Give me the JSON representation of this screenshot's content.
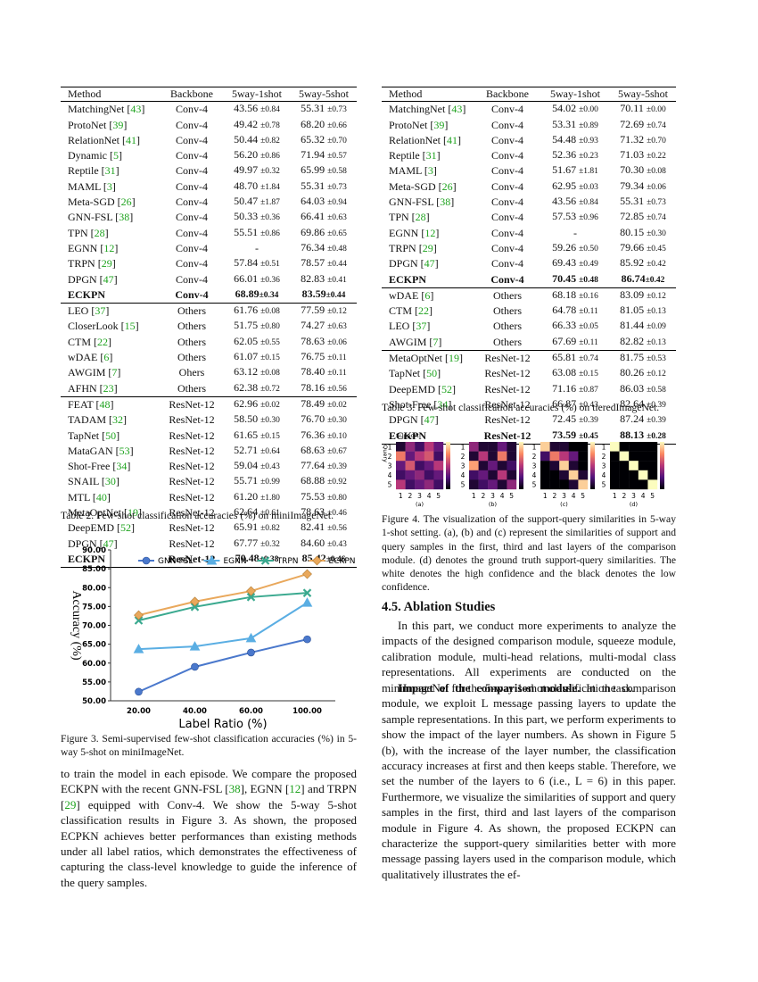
{
  "table2": {
    "header": [
      "Method",
      "Backbone",
      "5way-1shot",
      "5way-5shot"
    ],
    "groups": [
      {
        "bold_last": true,
        "rows": [
          [
            "MatchingNet [43]",
            "Conv-4",
            "43.56 ±0.84",
            "55.31 ±0.73"
          ],
          [
            "ProtoNet [39]",
            "Conv-4",
            "49.42 ±0.78",
            "68.20 ±0.66"
          ],
          [
            "RelationNet [41]",
            "Conv-4",
            "50.44 ±0.82",
            "65.32 ±0.70"
          ],
          [
            "Dynamic [5]",
            "Conv-4",
            "56.20 ±0.86",
            "71.94 ±0.57"
          ],
          [
            "Reptile [31]",
            "Conv-4",
            "49.97 ±0.32",
            "65.99 ±0.58"
          ],
          [
            "MAML [3]",
            "Conv-4",
            "48.70 ±1.84",
            "55.31 ±0.73"
          ],
          [
            "Meta-SGD [26]",
            "Conv-4",
            "50.47 ±1.87",
            "64.03 ±0.94"
          ],
          [
            "GNN-FSL [38]",
            "Conv-4",
            "50.33 ±0.36",
            "66.41 ±0.63"
          ],
          [
            "TPN [28]",
            "Conv-4",
            "55.51 ±0.86",
            "69.86 ±0.65"
          ],
          [
            "EGNN [12]",
            "Conv-4",
            "-",
            "76.34 ±0.48"
          ],
          [
            "TRPN [29]",
            "Conv-4",
            "57.84 ±0.51",
            "78.57 ±0.44"
          ],
          [
            "DPGN [47]",
            "Conv-4",
            "66.01 ±0.36",
            "82.83 ±0.41"
          ],
          [
            "ECKPN",
            "Conv-4",
            "68.89±0.34",
            "83.59±0.44"
          ]
        ]
      },
      {
        "bold_last": false,
        "rows": [
          [
            "LEO [37]",
            "Others",
            "61.76 ±0.08",
            "77.59 ±0.12"
          ],
          [
            "CloserLook [15]",
            "Others",
            "51.75 ±0.80",
            "74.27 ±0.63"
          ],
          [
            "CTM [22]",
            "Others",
            "62.05 ±0.55",
            "78.63 ±0.06"
          ],
          [
            "wDAE [6]",
            "Others",
            "61.07 ±0.15",
            "76.75 ±0.11"
          ],
          [
            "AWGIM [7]",
            "Ohers",
            "63.12 ±0.08",
            "78.40 ±0.11"
          ],
          [
            "AFHN [23]",
            "Others",
            "62.38 ±0.72",
            "78.16 ±0.56"
          ]
        ]
      },
      {
        "bold_last": true,
        "rows": [
          [
            "FEAT [48]",
            "ResNet-12",
            "62.96 ±0.02",
            "78.49 ±0.02"
          ],
          [
            "TADAM [32]",
            "ResNet-12",
            "58.50 ±0.30",
            "76.70 ±0.30"
          ],
          [
            "TapNet [50]",
            "ResNet-12",
            "61.65 ±0.15",
            "76.36 ±0.10"
          ],
          [
            "MataGAN [53]",
            "ResNet-12",
            "52.71 ±0.64",
            "68.63 ±0.67"
          ],
          [
            "Shot-Free [34]",
            "ResNet-12",
            "59.04 ±0.43",
            "77.64 ±0.39"
          ],
          [
            "SNAIL [30]",
            "ResNet-12",
            "55.71 ±0.99",
            "68.88 ±0.92"
          ],
          [
            "MTL [40]",
            "ResNet-12",
            "61.20 ±1.80",
            "75.53 ±0.80"
          ],
          [
            "MetaOptNet [19]",
            "ResNet-12",
            "62.64 ±0.61",
            "78.63 ±0.46"
          ],
          [
            "DeepEMD [52]",
            "ResNet-12",
            "65.91 ±0.82",
            "82.41 ±0.56"
          ],
          [
            "DPGN [47]",
            "ResNet-12",
            "67.77 ±0.32",
            "84.60 ±0.43"
          ],
          [
            "ECKPN",
            "ResNet-12",
            "70.48±0.38",
            "85.42±0.46"
          ]
        ]
      }
    ],
    "caption": "Table 2. Few-shot classification accuracies (%) on miniImageNet."
  },
  "table3": {
    "header": [
      "Method",
      "Backbone",
      "5way-1shot",
      "5way-5shot"
    ],
    "groups": [
      {
        "bold_last": true,
        "rows": [
          [
            "MatchingNet [43]",
            "Conv-4",
            "54.02 ±0.00",
            "70.11 ±0.00"
          ],
          [
            "ProtoNet [39]",
            "Conv-4",
            "53.31 ±0.89",
            "72.69 ±0.74"
          ],
          [
            "RelationNet [41]",
            "Conv-4",
            "54.48 ±0.93",
            "71.32 ±0.70"
          ],
          [
            "Reptile [31]",
            "Conv-4",
            "52.36 ±0.23",
            "71.03 ±0.22"
          ],
          [
            "MAML [3]",
            "Conv-4",
            "51.67 ±1.81",
            "70.30 ±0.08"
          ],
          [
            "Meta-SGD [26]",
            "Conv-4",
            "62.95 ±0.03",
            "79.34 ±0.06"
          ],
          [
            "GNN-FSL [38]",
            "Conv-4",
            "43.56 ±0.84",
            "55.31 ±0.73"
          ],
          [
            "TPN [28]",
            "Conv-4",
            "57.53 ±0.96",
            "72.85 ±0.74"
          ],
          [
            "EGNN [12]",
            "Conv-4",
            "-",
            "80.15 ±0.30"
          ],
          [
            "TRPN [29]",
            "Conv-4",
            "59.26 ±0.50",
            "79.66 ±0.45"
          ],
          [
            "DPGN [47]",
            "Conv-4",
            "69.43 ±0.49",
            "85.92 ±0.42"
          ],
          [
            "ECKPN",
            "Conv-4",
            "70.45 ±0.48",
            "86.74±0.42"
          ]
        ]
      },
      {
        "bold_last": false,
        "rows": [
          [
            "wDAE [6]",
            "Others",
            "68.18 ±0.16",
            "83.09 ±0.12"
          ],
          [
            "CTM [22]",
            "Others",
            "64.78 ±0.11",
            "81.05 ±0.13"
          ],
          [
            "LEO [37]",
            "Others",
            "66.33 ±0.05",
            "81.44 ±0.09"
          ],
          [
            "AWGIM [7]",
            "Others",
            "67.69 ±0.11",
            "82.82 ±0.13"
          ]
        ]
      },
      {
        "bold_last": true,
        "rows": [
          [
            "MetaOptNet [19]",
            "ResNet-12",
            "65.81 ±0.74",
            "81.75 ±0.53"
          ],
          [
            "TapNet [50]",
            "ResNet-12",
            "63.08 ±0.15",
            "80.26 ±0.12"
          ],
          [
            "DeepEMD [52]",
            "ResNet-12",
            "71.16 ±0.87",
            "86.03 ±0.58"
          ],
          [
            "Shot-Free [34]",
            "ResNet-12",
            "66.87 ±0.43",
            "82.64 ±0.39"
          ],
          [
            "DPGN [47]",
            "ResNet-12",
            "72.45 ±0.39",
            "87.24 ±0.39"
          ],
          [
            "ECKPN",
            "ResNet-12",
            "73.59 ±0.45",
            "88.13 ±0.28"
          ]
        ]
      }
    ],
    "caption": "Table 3. Few-shot classification accuracies (%) on tieredImageNet."
  },
  "figure3": {
    "chart_data": {
      "type": "line",
      "ylabel": "Accuracy (%)",
      "xlabel": "Label Ratio (%)",
      "categories": [
        "20.00",
        "40.00",
        "60.00",
        "100.00"
      ],
      "ylim": [
        50,
        90
      ],
      "yticks": [
        {
          "value": 50,
          "label": "50.00"
        },
        {
          "value": 55,
          "label": "55.00"
        },
        {
          "value": 60,
          "label": "60.00"
        },
        {
          "value": 65,
          "label": "65.00"
        },
        {
          "value": 70,
          "label": "70.00"
        },
        {
          "value": 75,
          "label": "75.00"
        },
        {
          "value": 80,
          "label": "80.00"
        },
        {
          "value": 85,
          "label": "85.00"
        },
        {
          "value": 90,
          "label": "90.00"
        }
      ],
      "legend": "upper center",
      "series": [
        {
          "name": "GNN-FSL",
          "color": "#4a78cc",
          "marker": "circle",
          "values": [
            52.4,
            59.0,
            62.8,
            66.3
          ]
        },
        {
          "name": "EGNN",
          "color": "#5aaee3",
          "marker": "triangle",
          "values": [
            63.7,
            64.4,
            66.6,
            76.0
          ]
        },
        {
          "name": "TRPN",
          "color": "#3aa98f",
          "marker": "x",
          "values": [
            71.3,
            74.9,
            77.5,
            78.6
          ]
        },
        {
          "name": "ECKPN",
          "color": "#e9a85c",
          "marker": "diamond",
          "values": [
            72.7,
            76.3,
            79.1,
            83.6
          ]
        }
      ]
    },
    "caption": "Figure 3. Semi-supervised few-shot classification accuracies (%) in 5-way 5-shot on miniImageNet."
  },
  "left_paragraph": "to train the model in each episode. We compare the proposed ECKPN with the recent GNN-FSL [38], EGNN [12] and TRPN [29] equipped with Conv-4. We show the 5-way 5-shot classification results in Figure 3. As shown, the proposed ECPKN achieves better performances than existing methods under all label ratios, which demonstrates the effectiveness of capturing the class-level knowledge to guide the inference of the query samples.",
  "figure4": {
    "support_label": "Support",
    "query_label": "Query",
    "ticks": [
      1,
      2,
      3,
      4,
      5
    ],
    "panels": [
      {
        "label": "(a)",
        "matrix": [
          [
            0.1,
            0.4,
            0.2,
            0.5,
            0.3
          ],
          [
            0.7,
            0.3,
            0.5,
            0.6,
            0.2
          ],
          [
            0.3,
            0.6,
            0.2,
            0.3,
            0.5
          ],
          [
            0.2,
            0.3,
            0.4,
            0.2,
            0.3
          ],
          [
            0.5,
            0.2,
            0.3,
            0.4,
            0.2
          ]
        ]
      },
      {
        "label": "(b)",
        "matrix": [
          [
            0.4,
            0.1,
            0.1,
            0.3,
            0.1
          ],
          [
            0.1,
            0.5,
            0.1,
            0.7,
            0.1
          ],
          [
            0.8,
            0.1,
            0.3,
            0.1,
            0.2
          ],
          [
            0.2,
            0.3,
            0.1,
            0.5,
            0.1
          ],
          [
            0.1,
            0.2,
            0.3,
            0.1,
            0.4
          ]
        ]
      },
      {
        "label": "(c)",
        "matrix": [
          [
            0.9,
            0.1,
            0.1,
            0,
            0
          ],
          [
            0.2,
            0.7,
            0.5,
            0.3,
            0
          ],
          [
            0,
            0.1,
            0.9,
            0.1,
            0
          ],
          [
            0,
            0,
            0.1,
            0.9,
            0.1
          ],
          [
            0,
            0,
            0,
            0.1,
            0.9
          ]
        ]
      },
      {
        "label": "(d)",
        "matrix": [
          [
            1,
            0,
            0,
            0,
            0
          ],
          [
            0,
            1,
            0,
            0,
            0
          ],
          [
            0,
            0,
            1,
            0,
            0
          ],
          [
            0,
            0,
            0,
            1,
            0
          ],
          [
            0,
            0,
            0,
            0,
            1
          ]
        ]
      }
    ],
    "caption": "Figure 4. The visualization of the support-query similarities in 5-way 1-shot setting. (a), (b) and (c) represent the similarities of support and query samples in the first, third and last layers of the comparison module. (d) denotes the ground truth support-query similarities. The white denotes the high confidence and the black denotes the low confidence."
  },
  "section": {
    "heading": "4.5. Ablation Studies",
    "paragraph1": "In this part, we conduct more experiments to analyze the impacts of the designed comparison module, squeeze module, calibration module, multi-head relations, multi-modal class representations. All experiments are conducted on the miniImageNet for the 5-way 1-shot classification task.",
    "paragraph2_lead": "Impact of the comparison module.",
    "paragraph2": "In the comparison module, we exploit L message passing layers to update the sample representations. In this part, we perform experiments to show the impact of the layer numbers. As shown in Figure 5 (b), with the increase of the layer number, the classification accuracy increases at first and then keeps stable. Therefore, we set the number of the layers to 6 (i.e., L = 6) in this paper. Furthermore, we visualize the similarities of support and query samples in the first, third and last layers of the comparison module in Figure 4. As shown, the proposed ECKPN can characterize the support-query similarities better with more message passing layers used in the comparison module, which qualitatively illustrates the ef-"
  }
}
